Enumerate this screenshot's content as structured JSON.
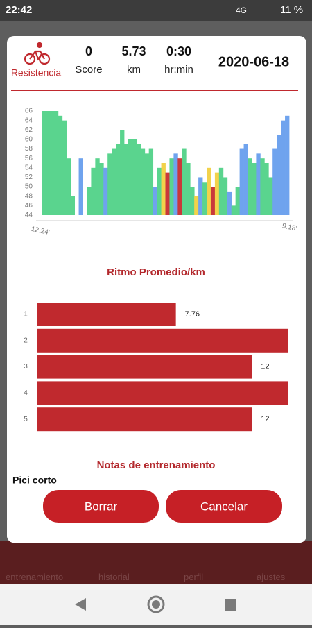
{
  "status_bar": {
    "time": "22:42",
    "network": "4G",
    "battery": "11 %"
  },
  "header": {
    "activity": "Resistencia",
    "score": "0",
    "score_label": "Score",
    "distance": "5.73",
    "distance_unit": "km",
    "duration": "0:30",
    "duration_unit": "hr:min",
    "date": "2020-06-18"
  },
  "hr_chart": {
    "type": "area",
    "ylim": [
      44,
      66
    ],
    "yticks": [
      44,
      46,
      48,
      50,
      52,
      54,
      56,
      58,
      60,
      62,
      64,
      66
    ],
    "x_labels": [
      "12.24'",
      "9.18'"
    ],
    "values": [
      66,
      66,
      66,
      66,
      65,
      64,
      56,
      48,
      44,
      56,
      44,
      50,
      54,
      56,
      55,
      54,
      57,
      58,
      59,
      62,
      59,
      60,
      60,
      59,
      58,
      57,
      58,
      50,
      54,
      55,
      53,
      56,
      57,
      56,
      58,
      55,
      50,
      48,
      52,
      51,
      54,
      50,
      53,
      54,
      52,
      49,
      46,
      50,
      58,
      59,
      56,
      55,
      57,
      56,
      55,
      52,
      58,
      61,
      64,
      65
    ],
    "colors": [
      "#5ad48e",
      "#5ad48e",
      "#5ad48e",
      "#5ad48e",
      "#5ad48e",
      "#5ad48e",
      "#5ad48e",
      "#5ad48e",
      "#5ad48e",
      "#6fa3ee",
      "#5ad48e",
      "#5ad48e",
      "#5ad48e",
      "#5ad48e",
      "#5ad48e",
      "#6fa3ee",
      "#5ad48e",
      "#5ad48e",
      "#5ad48e",
      "#5ad48e",
      "#5ad48e",
      "#5ad48e",
      "#5ad48e",
      "#5ad48e",
      "#5ad48e",
      "#5ad48e",
      "#5ad48e",
      "#6fa3ee",
      "#5ad48e",
      "#f2d24b",
      "#c9383b",
      "#5ad48e",
      "#6fa3ee",
      "#c9383b",
      "#5ad48e",
      "#5ad48e",
      "#5ad48e",
      "#f2d24b",
      "#6fa3ee",
      "#5ad48e",
      "#f2d24b",
      "#c9383b",
      "#f2d24b",
      "#5ad48e",
      "#5ad48e",
      "#6fa3ee",
      "#5ad48e",
      "#5ad48e",
      "#6fa3ee",
      "#6fa3ee",
      "#5ad48e",
      "#5ad48e",
      "#6fa3ee",
      "#5ad48e",
      "#5ad48e",
      "#5ad48e",
      "#6fa3ee",
      "#6fa3ee",
      "#6fa3ee",
      "#6fa3ee"
    ]
  },
  "pace_chart": {
    "type": "bar",
    "title": "Ritmo Promedio/km",
    "categories": [
      "1",
      "2",
      "3",
      "4",
      "5"
    ],
    "values": [
      7.76,
      14,
      12,
      14,
      12
    ],
    "xlim": [
      0,
      14
    ],
    "color": "#c0292e"
  },
  "notes": {
    "title": "Notas de entrenamiento",
    "text": "Pici corto"
  },
  "buttons": [
    "Borrar",
    "Cancelar"
  ],
  "nav": [
    "entrenamiento",
    "historial",
    "perfil",
    "ajustes"
  ]
}
